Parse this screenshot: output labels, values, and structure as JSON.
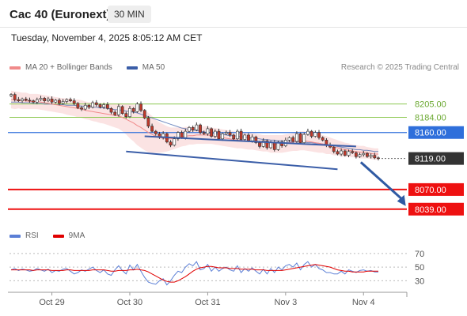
{
  "header": {
    "instrument": "Cac 40 (Euronext)",
    "timeframe": "30 MIN",
    "timestamp": "Tuesday, November 4, 2025 8:05:12 AM CET"
  },
  "legend": {
    "items": [
      {
        "label": "MA 20 + Bollinger Bands",
        "color": "#f08a8a"
      },
      {
        "label": "MA 50",
        "color": "#3b5ea8"
      }
    ],
    "credit": "Research © 2025 Trading Central"
  },
  "rsi_legend": {
    "items": [
      {
        "label": "RSI",
        "color": "#5b7fd6"
      },
      {
        "label": "9MA",
        "color": "#e00000"
      }
    ]
  },
  "chart_data": {
    "type": "line",
    "title": "Cac 40 (Euronext)",
    "timeframe": "30 MIN",
    "x_tick_labels": [
      "Oct 29",
      "Oct 30",
      "Oct 31",
      "Nov 3",
      "Nov 4"
    ],
    "price_range": [
      8020,
      8232
    ],
    "price_series": {
      "name": "Cac 40",
      "values": [
        8220,
        8212,
        8210,
        8213,
        8211,
        8210,
        8208,
        8212,
        8214,
        8210,
        8213,
        8208,
        8211,
        8206,
        8209,
        8212,
        8210,
        8206,
        8199,
        8197,
        8203,
        8200,
        8207,
        8204,
        8200,
        8204,
        8198,
        8192,
        8188,
        8201,
        8190,
        8185,
        8198,
        8193,
        8205,
        8195,
        8183,
        8170,
        8162,
        8158,
        8152,
        8158,
        8145,
        8140,
        8150,
        8160,
        8152,
        8162,
        8168,
        8164,
        8172,
        8160,
        8158,
        8166,
        8154,
        8162,
        8150,
        8158,
        8160,
        8156,
        8150,
        8162,
        8149,
        8156,
        8147,
        8153,
        8144,
        8138,
        8147,
        8136,
        8144,
        8133,
        8145,
        8139,
        8148,
        8152,
        8146,
        8158,
        8144,
        8157,
        8162,
        8154,
        8160,
        8152,
        8148,
        8140,
        8137,
        8130,
        8126,
        8131,
        8124,
        8130,
        8128,
        8122,
        8125,
        8127,
        8122,
        8124,
        8120,
        8119
      ]
    },
    "ma20": [
      8212,
      8211,
      8211,
      8210,
      8210,
      8209,
      8209,
      8209,
      8208,
      8207,
      8206,
      8205,
      8204,
      8203,
      8202,
      8201,
      8200,
      8199,
      8198,
      8197,
      8195,
      8194,
      8193,
      8192,
      8191,
      8190,
      8189,
      8188,
      8187,
      8186,
      8184,
      8181,
      8178,
      8175,
      8171,
      8168,
      8164,
      8160,
      8157,
      8154,
      8152,
      8151,
      8150,
      8150,
      8151,
      8152,
      8153,
      8154,
      8155,
      8155,
      8156,
      8156,
      8156,
      8156,
      8155,
      8154,
      8153,
      8152,
      8151,
      8150,
      8149,
      8148,
      8148,
      8147,
      8146,
      8146,
      8145,
      8144,
      8143,
      8143,
      8142,
      8142,
      8142,
      8142,
      8143,
      8144,
      8145,
      8146,
      8147,
      8147,
      8146,
      8145,
      8144,
      8143,
      8142,
      8140,
      8139,
      8137,
      8136,
      8134,
      8133,
      8132,
      8131,
      8130,
      8129,
      8129,
      8128,
      8127,
      8126,
      8126
    ],
    "ma50": [
      8208,
      8208,
      8208,
      8207,
      8207,
      8207,
      8206,
      8206,
      8206,
      8205,
      8205,
      8205,
      8204,
      8204,
      8204,
      8203,
      8203,
      8203,
      8202,
      8202,
      8201,
      8201,
      8200,
      8200,
      8199,
      8199,
      8198,
      8197,
      8196,
      8196,
      8195,
      8194,
      8193,
      8192,
      8191,
      8189,
      8187,
      8185,
      8183,
      8181,
      8179,
      8177,
      8175,
      8173,
      8171,
      8169,
      8167,
      8166,
      8165,
      8164,
      8163,
      8162,
      8161,
      8160,
      8159,
      8158,
      8157,
      8157,
      8156,
      8155,
      8155,
      8154,
      8153,
      8153,
      8152,
      8151,
      8151,
      8150,
      8149,
      8149,
      8148,
      8148,
      8147,
      8147,
      8146,
      8146,
      8146,
      8145,
      8145,
      8145,
      8144,
      8144,
      8143,
      8143,
      8142,
      8141,
      8140,
      8139,
      8138,
      8137,
      8136,
      8135,
      8134,
      8133,
      8133,
      8132,
      8132,
      8131,
      8130,
      8130
    ],
    "bollinger_halfwidth": [
      14,
      14,
      13,
      13,
      13,
      12,
      12,
      12,
      12,
      12,
      12,
      12,
      12,
      12,
      12,
      13,
      13,
      13,
      14,
      14,
      14,
      14,
      15,
      15,
      16,
      16,
      17,
      18,
      19,
      20,
      22,
      24,
      27,
      29,
      31,
      32,
      32,
      31,
      29,
      26,
      24,
      22,
      20,
      18,
      17,
      16,
      15,
      15,
      14,
      14,
      14,
      14,
      14,
      14,
      13,
      13,
      13,
      13,
      13,
      13,
      13,
      13,
      13,
      13,
      13,
      13,
      13,
      13,
      13,
      13,
      14,
      14,
      14,
      14,
      14,
      14,
      14,
      15,
      15,
      15,
      15,
      15,
      15,
      15,
      14,
      14,
      13,
      13,
      12,
      12,
      11,
      11,
      10,
      10,
      10,
      10,
      9,
      9,
      9,
      9
    ],
    "trend_channel": {
      "upper": {
        "from": [
          36,
          8154
        ],
        "to": [
          93,
          8138
        ]
      },
      "lower": {
        "from": [
          31,
          8130
        ],
        "to": [
          88,
          8102
        ]
      }
    },
    "projection_arrow": {
      "from": [
        93,
        8113
      ],
      "to": [
        100,
        8044
      ]
    },
    "levels": [
      {
        "value": 8205.0,
        "label": "8205.00",
        "type": "resistance",
        "color": "#8cc850"
      },
      {
        "value": 8184.0,
        "label": "8184.00",
        "type": "resistance",
        "color": "#8cc850"
      },
      {
        "value": 8160.0,
        "label": "8160.00",
        "type": "pivot",
        "color": "#2f6fdb"
      },
      {
        "value": 8119.0,
        "label": "8119.00",
        "type": "last",
        "color": "#333333"
      },
      {
        "value": 8070.0,
        "label": "8070.00",
        "type": "support",
        "color": "#ee1111"
      },
      {
        "value": 8039.0,
        "label": "8039.00",
        "type": "support",
        "color": "#ee1111"
      }
    ],
    "rsi": {
      "range": [
        20,
        78
      ],
      "ticks": [
        70,
        50,
        30
      ],
      "rsi_values": [
        46,
        48,
        45,
        47,
        46,
        44,
        45,
        48,
        46,
        44,
        47,
        42,
        45,
        44,
        47,
        48,
        44,
        40,
        42,
        46,
        44,
        47,
        50,
        45,
        42,
        46,
        40,
        38,
        46,
        52,
        45,
        40,
        53,
        46,
        54,
        44,
        35,
        28,
        26,
        25,
        30,
        33,
        24,
        30,
        38,
        44,
        42,
        50,
        55,
        52,
        58,
        46,
        48,
        54,
        44,
        50,
        44,
        48,
        50,
        46,
        44,
        52,
        42,
        48,
        44,
        49,
        44,
        40,
        47,
        40,
        48,
        42,
        50,
        46,
        52,
        54,
        50,
        56,
        46,
        54,
        58,
        50,
        54,
        48,
        46,
        42,
        42,
        40,
        40,
        44,
        40,
        46,
        44,
        42,
        45,
        46,
        44,
        45,
        43,
        43
      ],
      "ma9_values": [
        46,
        46,
        46,
        46,
        46,
        46,
        45,
        46,
        46,
        46,
        46,
        45,
        45,
        45,
        45,
        46,
        46,
        45,
        45,
        45,
        45,
        45,
        46,
        46,
        46,
        46,
        45,
        44,
        44,
        45,
        45,
        45,
        46,
        46,
        47,
        46,
        45,
        43,
        40,
        37,
        34,
        31,
        29,
        28,
        28,
        30,
        33,
        36,
        40,
        44,
        47,
        49,
        50,
        51,
        51,
        50,
        49,
        49,
        49,
        48,
        48,
        48,
        47,
        47,
        47,
        47,
        46,
        46,
        46,
        45,
        45,
        45,
        45,
        45,
        46,
        47,
        48,
        49,
        50,
        51,
        52,
        53,
        54,
        53,
        52,
        51,
        50,
        48,
        46,
        45,
        44,
        44,
        43,
        43,
        43,
        43,
        44,
        44,
        44,
        44
      ]
    }
  }
}
